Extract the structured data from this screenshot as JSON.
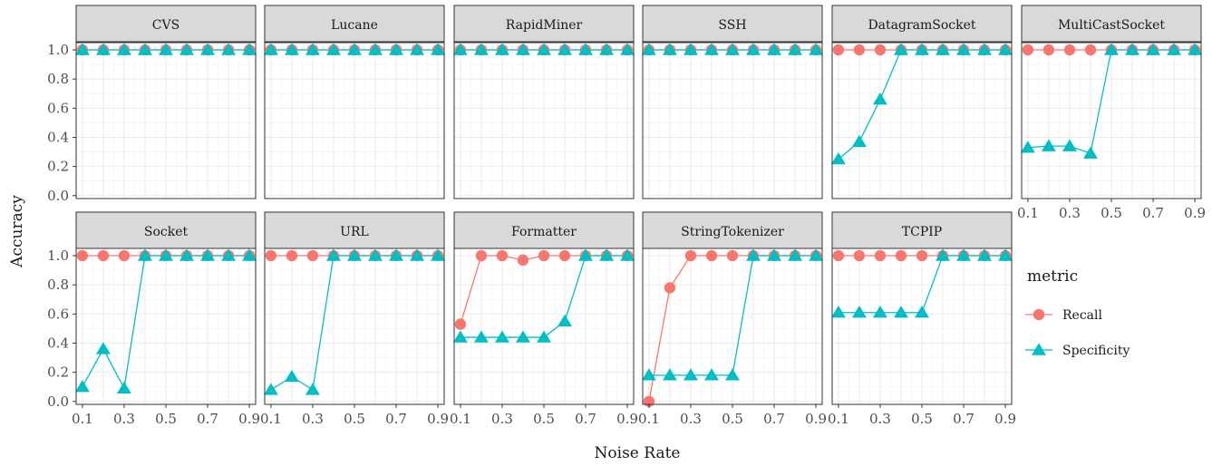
{
  "chart_data": {
    "type": "line",
    "facet_layout": "2 rows x 6 columns, facets wrapped left-to-right",
    "xlabel": "Noise Rate",
    "ylabel": "Accuracy",
    "x": [
      0.1,
      0.2,
      0.3,
      0.4,
      0.5,
      0.6,
      0.7,
      0.8,
      0.9
    ],
    "x_ticks": [
      "0.1",
      "0.3",
      "0.5",
      "0.7",
      "0.9"
    ],
    "y_ticks": [
      "0.0",
      "0.2",
      "0.4",
      "0.6",
      "0.8",
      "1.0"
    ],
    "xlim": [
      0.07,
      0.93
    ],
    "ylim": [
      -0.02,
      1.05
    ],
    "grid": true,
    "legend": {
      "title": "metric",
      "placement": "right",
      "entries": [
        {
          "name": "Recall",
          "color": "#F8766D",
          "marker": "circle"
        },
        {
          "name": "Specificity",
          "color": "#00BFC4",
          "marker": "triangle"
        }
      ]
    },
    "panels": [
      {
        "name": "CVS",
        "recall": [
          1,
          1,
          1,
          1,
          1,
          1,
          1,
          1,
          1
        ],
        "specificity": [
          1,
          1,
          1,
          1,
          1,
          1,
          1,
          1,
          1
        ]
      },
      {
        "name": "Lucane",
        "recall": [
          1,
          1,
          1,
          1,
          1,
          1,
          1,
          1,
          1
        ],
        "specificity": [
          1,
          1,
          1,
          1,
          1,
          1,
          1,
          1,
          1
        ]
      },
      {
        "name": "RapidMiner",
        "recall": [
          1,
          1,
          1,
          1,
          1,
          1,
          1,
          1,
          1
        ],
        "specificity": [
          1,
          1,
          1,
          1,
          1,
          1,
          1,
          1,
          1
        ]
      },
      {
        "name": "SSH",
        "recall": [
          1,
          1,
          1,
          1,
          1,
          1,
          1,
          1,
          1
        ],
        "specificity": [
          1,
          1,
          1,
          1,
          1,
          1,
          1,
          1,
          1
        ]
      },
      {
        "name": "DatagramSocket",
        "recall": [
          1,
          1,
          1,
          1,
          1,
          1,
          1,
          1,
          1
        ],
        "specificity": [
          0.25,
          0.37,
          0.66,
          1,
          1,
          1,
          1,
          1,
          1
        ]
      },
      {
        "name": "MultiCastSocket",
        "recall": [
          1,
          1,
          1,
          1,
          1,
          1,
          1,
          1,
          1
        ],
        "specificity": [
          0.33,
          0.34,
          0.34,
          0.29,
          1,
          1,
          1,
          1,
          1
        ]
      },
      {
        "name": "Socket",
        "recall": [
          1,
          1,
          1,
          1,
          1,
          1,
          1,
          1,
          1
        ],
        "specificity": [
          0.1,
          0.36,
          0.09,
          1,
          1,
          1,
          1,
          1,
          1
        ]
      },
      {
        "name": "URL",
        "recall": [
          1,
          1,
          1,
          1,
          1,
          1,
          1,
          1,
          1
        ],
        "specificity": [
          0.08,
          0.17,
          0.08,
          1,
          1,
          1,
          1,
          1,
          1
        ]
      },
      {
        "name": "Formatter",
        "recall": [
          0.53,
          1,
          1,
          0.97,
          1,
          1,
          1,
          1,
          1
        ],
        "specificity": [
          0.44,
          0.44,
          0.44,
          0.44,
          0.44,
          0.55,
          1,
          1,
          1
        ]
      },
      {
        "name": "StringTokenizer",
        "recall": [
          0,
          0.78,
          1,
          1,
          1,
          1,
          1,
          1,
          1
        ],
        "specificity": [
          0.18,
          0.18,
          0.18,
          0.18,
          0.18,
          1,
          1,
          1,
          1
        ]
      },
      {
        "name": "TCPIP",
        "recall": [
          1,
          1,
          1,
          1,
          1,
          1,
          1,
          1,
          1
        ],
        "specificity": [
          0.61,
          0.61,
          0.61,
          0.61,
          0.61,
          1,
          1,
          1,
          1
        ]
      }
    ]
  }
}
